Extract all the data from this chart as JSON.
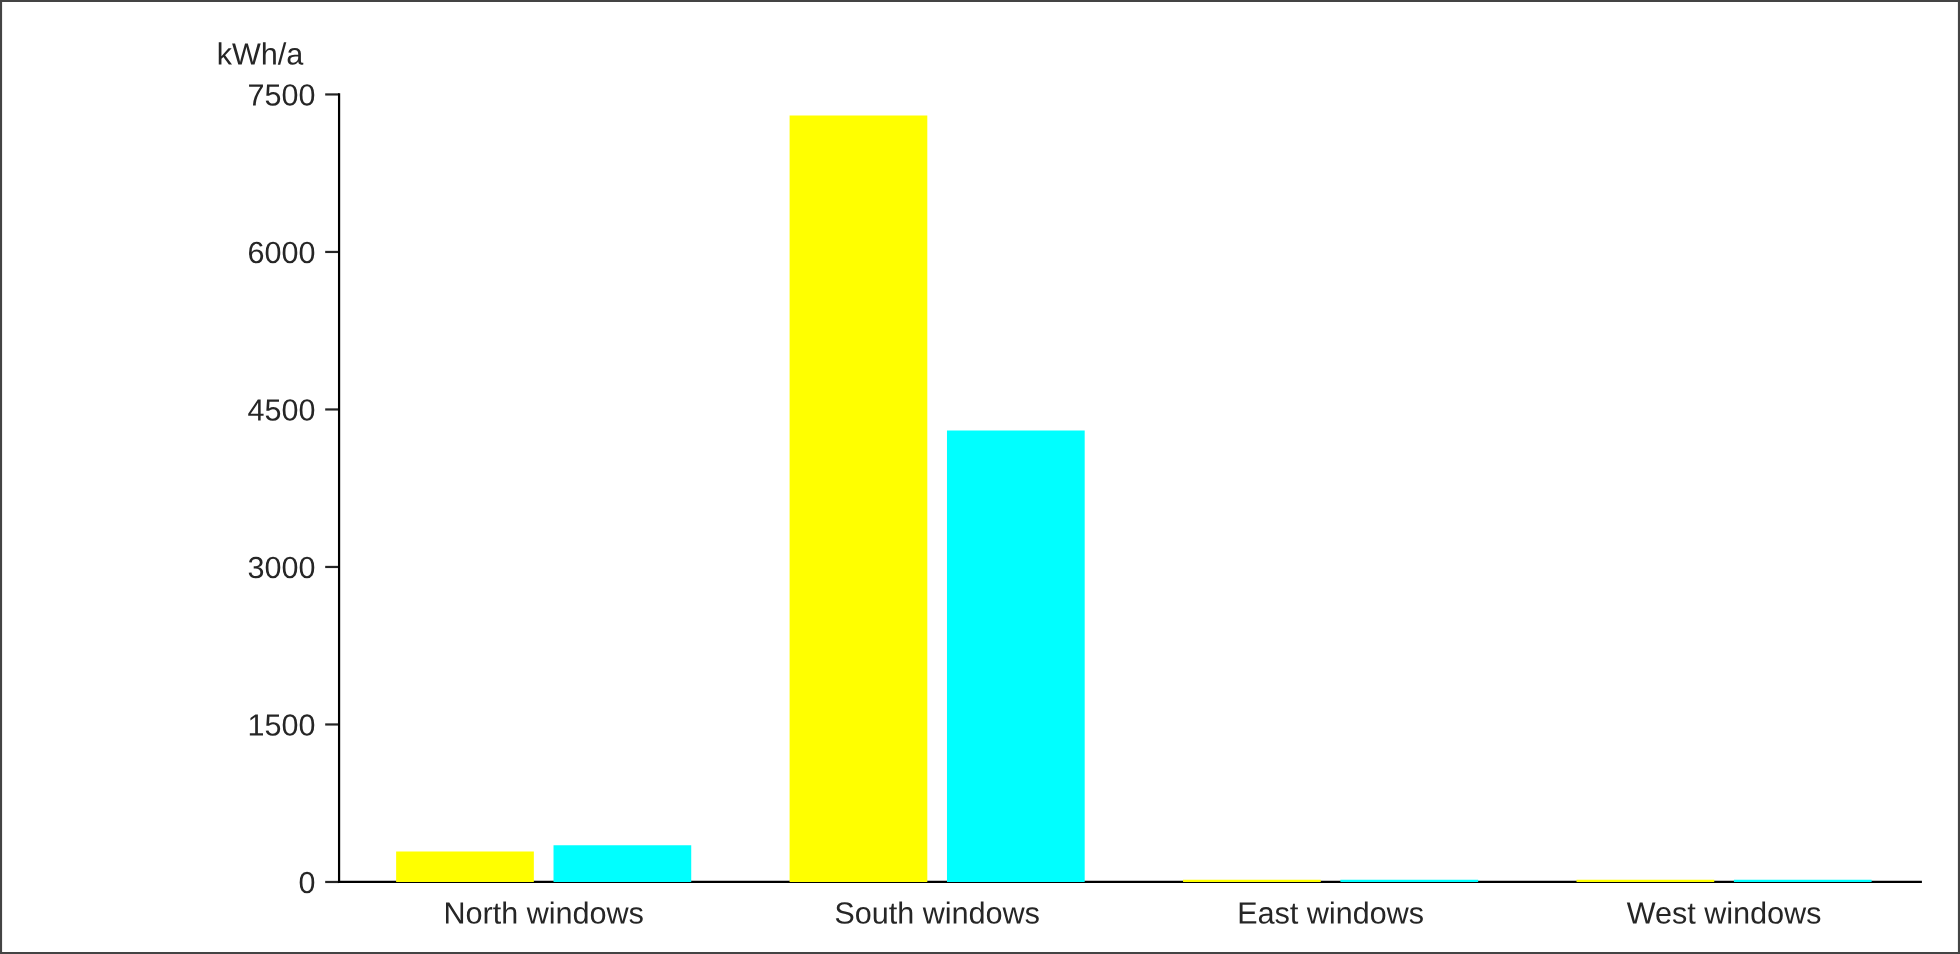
{
  "chart_data": {
    "type": "bar",
    "ylabel": "kWh/a",
    "categories": [
      "North windows",
      "South windows",
      "East windows",
      "West windows"
    ],
    "series": [
      {
        "color": "#ffff00",
        "values": [
          290,
          7300,
          20,
          20
        ]
      },
      {
        "color": "#00ffff",
        "values": [
          350,
          4300,
          20,
          20
        ]
      }
    ],
    "ylim": [
      0,
      7500
    ],
    "yticks": [
      0,
      1500,
      3000,
      4500,
      6000,
      7500
    ],
    "grid": false
  }
}
